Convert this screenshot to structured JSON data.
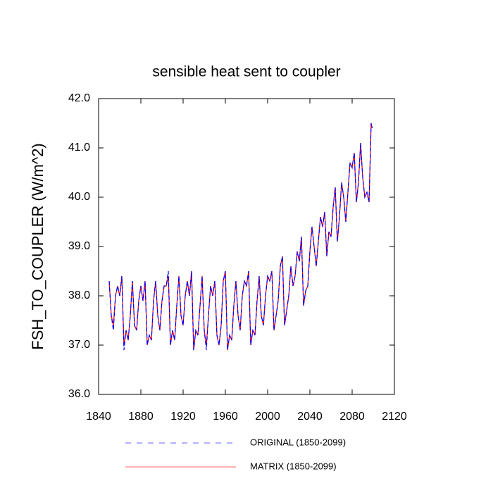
{
  "chart_data": {
    "type": "line",
    "title": "sensible heat sent to coupler",
    "y_label": "FSH_TO_COUPLER  (W/m^2)",
    "x": [
      1850,
      1852,
      1854,
      1856,
      1858,
      1860,
      1862,
      1864,
      1866,
      1868,
      1870,
      1872,
      1874,
      1876,
      1878,
      1880,
      1882,
      1884,
      1886,
      1888,
      1890,
      1892,
      1894,
      1896,
      1898,
      1900,
      1902,
      1904,
      1906,
      1908,
      1910,
      1912,
      1914,
      1916,
      1918,
      1920,
      1922,
      1924,
      1926,
      1928,
      1930,
      1932,
      1934,
      1936,
      1938,
      1940,
      1942,
      1944,
      1946,
      1948,
      1950,
      1952,
      1954,
      1956,
      1958,
      1960,
      1962,
      1964,
      1966,
      1968,
      1970,
      1972,
      1974,
      1976,
      1978,
      1980,
      1982,
      1984,
      1986,
      1988,
      1990,
      1992,
      1994,
      1996,
      1998,
      2000,
      2002,
      2004,
      2006,
      2008,
      2010,
      2012,
      2014,
      2016,
      2018,
      2020,
      2022,
      2024,
      2026,
      2028,
      2030,
      2032,
      2034,
      2036,
      2038,
      2040,
      2042,
      2044,
      2046,
      2048,
      2050,
      2052,
      2054,
      2056,
      2058,
      2060,
      2062,
      2064,
      2066,
      2068,
      2070,
      2072,
      2074,
      2076,
      2078,
      2080,
      2082,
      2084,
      2086,
      2088,
      2090,
      2092,
      2094,
      2096,
      2098,
      2099
    ],
    "series": [
      {
        "name": "ORIGINAL (1850-2099)",
        "color": "#0000ff",
        "dashed": true,
        "values": [
          38.3,
          37.6,
          37.3,
          38.0,
          38.2,
          38.0,
          38.4,
          36.9,
          37.3,
          37.1,
          37.6,
          38.3,
          37.4,
          37.3,
          37.9,
          38.2,
          37.9,
          38.3,
          37.0,
          37.2,
          37.1,
          37.9,
          38.3,
          37.6,
          37.3,
          37.9,
          38.2,
          38.2,
          38.5,
          37.0,
          37.3,
          37.1,
          37.8,
          38.4,
          37.6,
          37.4,
          38.0,
          38.3,
          38.0,
          38.5,
          36.9,
          37.3,
          37.2,
          37.8,
          38.4,
          37.3,
          36.9,
          37.6,
          38.2,
          38.0,
          38.3,
          37.2,
          37.0,
          37.4,
          38.3,
          38.5,
          36.9,
          37.2,
          37.1,
          37.8,
          38.3,
          37.6,
          37.3,
          38.0,
          38.3,
          38.2,
          38.5,
          37.0,
          37.3,
          37.2,
          37.9,
          38.4,
          37.6,
          37.4,
          38.0,
          38.4,
          38.3,
          38.5,
          37.3,
          37.6,
          37.9,
          38.6,
          38.8,
          37.4,
          37.7,
          38.0,
          38.6,
          38.2,
          38.4,
          38.9,
          38.7,
          39.2,
          37.8,
          38.1,
          38.2,
          38.9,
          39.4,
          39.0,
          38.6,
          39.1,
          39.6,
          39.4,
          39.7,
          38.8,
          39.3,
          39.2,
          39.8,
          40.2,
          39.1,
          39.6,
          40.3,
          40.0,
          39.5,
          40.1,
          40.7,
          40.6,
          40.9,
          39.9,
          40.3,
          41.1,
          40.4,
          40.0,
          40.1,
          39.9,
          41.5,
          41.4
        ]
      },
      {
        "name": "MATRIX (1850-2099)",
        "color": "#ff0000",
        "dashed": false,
        "values": [
          38.3,
          37.6,
          37.4,
          38.0,
          38.2,
          38.0,
          38.4,
          37.0,
          37.3,
          37.1,
          37.6,
          38.3,
          37.4,
          37.3,
          37.9,
          38.2,
          37.9,
          38.3,
          37.0,
          37.2,
          37.1,
          37.9,
          38.3,
          37.6,
          37.3,
          37.9,
          38.2,
          38.2,
          38.4,
          37.0,
          37.3,
          37.1,
          37.8,
          38.4,
          37.6,
          37.4,
          38.0,
          38.3,
          38.0,
          38.5,
          36.9,
          37.3,
          37.2,
          37.8,
          38.4,
          37.3,
          37.0,
          37.6,
          38.2,
          38.0,
          38.3,
          37.2,
          37.0,
          37.4,
          38.3,
          38.5,
          36.9,
          37.2,
          37.1,
          37.8,
          38.3,
          37.6,
          37.3,
          38.0,
          38.3,
          38.2,
          38.5,
          37.0,
          37.3,
          37.2,
          37.9,
          38.4,
          37.6,
          37.4,
          38.0,
          38.4,
          38.3,
          38.5,
          37.3,
          37.6,
          37.9,
          38.6,
          38.8,
          37.4,
          37.7,
          38.0,
          38.6,
          38.2,
          38.4,
          38.9,
          38.7,
          39.2,
          37.8,
          38.1,
          38.2,
          38.9,
          39.4,
          39.0,
          38.6,
          39.1,
          39.6,
          39.4,
          39.7,
          38.8,
          39.3,
          39.2,
          39.8,
          40.2,
          39.1,
          39.6,
          40.3,
          40.0,
          39.5,
          40.1,
          40.7,
          40.6,
          40.9,
          39.9,
          40.3,
          41.1,
          40.4,
          40.0,
          40.1,
          39.9,
          41.5,
          41.4
        ]
      }
    ],
    "xlim": [
      1840,
      2120
    ],
    "xticks": [
      1840,
      1880,
      1920,
      1960,
      2000,
      2040,
      2080,
      2120
    ],
    "ylim": [
      36,
      42
    ],
    "yticks": [
      {
        "value": 36,
        "label": "36.0"
      },
      {
        "value": 37,
        "label": "37.0"
      },
      {
        "value": 38,
        "label": "38.0"
      },
      {
        "value": 39,
        "label": "39.0"
      },
      {
        "value": 40,
        "label": "40.0"
      },
      {
        "value": 41,
        "label": "41.0"
      },
      {
        "value": 42,
        "label": "42.0"
      }
    ],
    "grid": false
  }
}
